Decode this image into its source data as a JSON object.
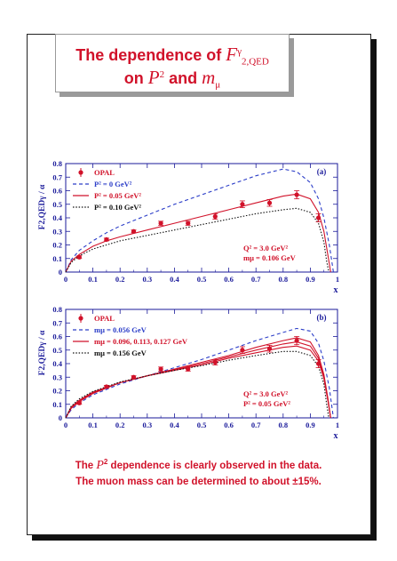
{
  "title": {
    "prefix": "The dependence of ",
    "symbol_F": "F",
    "sub": "2,QED",
    "sup": "γ",
    "line2_prefix": "on ",
    "P": "P",
    "P_sup": "2",
    "and": " and ",
    "m": "m",
    "m_sub": "μ"
  },
  "footer": {
    "line1_prefix": "The ",
    "line1_P": "P",
    "line1_sup": "2",
    "line1_suffix": " dependence is clearly observed in the data.",
    "line2_prefix": "The muon mass can be determined to about ",
    "line2_value": "±15%."
  },
  "colors": {
    "axis": "#1a1a9a",
    "red": "#d1122a",
    "blue": "#2c3ec8",
    "black": "#111111"
  },
  "chart_data": [
    {
      "type": "line",
      "panel_label": "(a)",
      "xlim": [
        0,
        1
      ],
      "ylim": [
        0,
        0.8
      ],
      "xticks": [
        "0",
        "0.1",
        "0.2",
        "0.3",
        "0.4",
        "0.5",
        "0.6",
        "0.7",
        "0.8",
        "0.9",
        "1"
      ],
      "yticks": [
        "0",
        "0.1",
        "0.2",
        "0.3",
        "0.4",
        "0.5",
        "0.6",
        "0.7",
        "0.8"
      ],
      "xlabel": "x",
      "ylabel": "F2,QEDγ / α",
      "legend": [
        {
          "label": "OPAL",
          "style": "points",
          "color": "#d1122a"
        },
        {
          "label": "P² =   0 GeV²",
          "style": "dashed",
          "color": "#2c3ec8"
        },
        {
          "label": "P² = 0.05 GeV²",
          "style": "solid",
          "color": "#d1122a"
        },
        {
          "label": "P² = 0.10 GeV²",
          "style": "dotted",
          "color": "#111111"
        }
      ],
      "annotation": [
        "Q² = 3.0 GeV²",
        "mμ = 0.106 GeV"
      ],
      "points": {
        "x": [
          0.05,
          0.15,
          0.25,
          0.35,
          0.45,
          0.55,
          0.65,
          0.75,
          0.85,
          0.93
        ],
        "y": [
          0.11,
          0.24,
          0.3,
          0.36,
          0.36,
          0.41,
          0.5,
          0.51,
          0.57,
          0.4
        ],
        "err": [
          0.01,
          0.01,
          0.01,
          0.015,
          0.015,
          0.02,
          0.025,
          0.025,
          0.03,
          0.03
        ]
      },
      "series": [
        {
          "style": "dashed",
          "color": "#2c3ec8",
          "x": [
            0,
            0.02,
            0.05,
            0.1,
            0.15,
            0.2,
            0.3,
            0.4,
            0.5,
            0.6,
            0.7,
            0.8,
            0.85,
            0.9,
            0.93,
            0.95,
            0.97,
            0.985
          ],
          "y": [
            0,
            0.09,
            0.16,
            0.23,
            0.29,
            0.34,
            0.42,
            0.5,
            0.57,
            0.64,
            0.71,
            0.76,
            0.74,
            0.66,
            0.54,
            0.4,
            0.2,
            0.0
          ]
        },
        {
          "style": "solid",
          "color": "#d1122a",
          "x": [
            0,
            0.02,
            0.05,
            0.1,
            0.15,
            0.2,
            0.3,
            0.4,
            0.5,
            0.6,
            0.7,
            0.8,
            0.85,
            0.9,
            0.93,
            0.95,
            0.965,
            0.975
          ],
          "y": [
            0,
            0.08,
            0.13,
            0.19,
            0.23,
            0.26,
            0.31,
            0.36,
            0.41,
            0.46,
            0.51,
            0.56,
            0.575,
            0.54,
            0.44,
            0.3,
            0.12,
            0.0
          ]
        },
        {
          "style": "dotted",
          "color": "#111111",
          "x": [
            0,
            0.02,
            0.05,
            0.1,
            0.15,
            0.2,
            0.3,
            0.4,
            0.5,
            0.6,
            0.7,
            0.8,
            0.85,
            0.9,
            0.93,
            0.95,
            0.96,
            0.968
          ],
          "y": [
            0,
            0.07,
            0.12,
            0.17,
            0.2,
            0.23,
            0.27,
            0.31,
            0.35,
            0.39,
            0.43,
            0.46,
            0.47,
            0.44,
            0.36,
            0.22,
            0.08,
            0.0
          ]
        }
      ]
    },
    {
      "type": "line",
      "panel_label": "(b)",
      "xlim": [
        0,
        1
      ],
      "ylim": [
        0,
        0.8
      ],
      "xticks": [
        "0",
        "0.1",
        "0.2",
        "0.3",
        "0.4",
        "0.5",
        "0.6",
        "0.7",
        "0.8",
        "0.9",
        "1"
      ],
      "yticks": [
        "0",
        "0.1",
        "0.2",
        "0.3",
        "0.4",
        "0.5",
        "0.6",
        "0.7",
        "0.8"
      ],
      "xlabel": "x",
      "ylabel": "F2,QEDγ / α",
      "legend": [
        {
          "label": "OPAL",
          "style": "points",
          "color": "#d1122a"
        },
        {
          "label": "mμ = 0.056 GeV",
          "style": "dashed",
          "color": "#2c3ec8"
        },
        {
          "label": "mμ = 0.096, 0.113, 0.127 GeV",
          "style": "solid",
          "color": "#d1122a"
        },
        {
          "label": "mμ = 0.156 GeV",
          "style": "dotted",
          "color": "#111111"
        }
      ],
      "annotation": [
        "Q² = 3.0 GeV²",
        "P² = 0.05 GeV²"
      ],
      "points": {
        "x": [
          0.05,
          0.15,
          0.25,
          0.35,
          0.45,
          0.55,
          0.65,
          0.75,
          0.85,
          0.93
        ],
        "y": [
          0.11,
          0.23,
          0.3,
          0.36,
          0.36,
          0.41,
          0.5,
          0.51,
          0.57,
          0.4
        ],
        "err": [
          0.01,
          0.01,
          0.01,
          0.015,
          0.015,
          0.02,
          0.025,
          0.025,
          0.03,
          0.03
        ]
      },
      "series": [
        {
          "style": "dashed",
          "color": "#2c3ec8",
          "x": [
            0,
            0.02,
            0.05,
            0.1,
            0.2,
            0.3,
            0.4,
            0.5,
            0.6,
            0.7,
            0.8,
            0.85,
            0.9,
            0.93,
            0.95,
            0.97,
            0.985
          ],
          "y": [
            0,
            0.06,
            0.11,
            0.17,
            0.25,
            0.31,
            0.37,
            0.43,
            0.5,
            0.57,
            0.63,
            0.66,
            0.64,
            0.55,
            0.42,
            0.22,
            0.0
          ]
        },
        {
          "style": "solid",
          "color": "#d1122a",
          "x": [
            0,
            0.02,
            0.05,
            0.1,
            0.2,
            0.3,
            0.4,
            0.5,
            0.6,
            0.7,
            0.8,
            0.85,
            0.9,
            0.93,
            0.95,
            0.965,
            0.975
          ],
          "y": [
            0,
            0.07,
            0.12,
            0.18,
            0.26,
            0.31,
            0.36,
            0.41,
            0.46,
            0.52,
            0.57,
            0.59,
            0.56,
            0.46,
            0.32,
            0.14,
            0.0
          ]
        },
        {
          "style": "solid",
          "color": "#d1122a",
          "x": [
            0,
            0.02,
            0.05,
            0.1,
            0.2,
            0.3,
            0.4,
            0.5,
            0.6,
            0.7,
            0.8,
            0.85,
            0.9,
            0.93,
            0.95,
            0.965,
            0.975
          ],
          "y": [
            0,
            0.075,
            0.125,
            0.185,
            0.26,
            0.31,
            0.355,
            0.4,
            0.45,
            0.5,
            0.545,
            0.56,
            0.53,
            0.44,
            0.31,
            0.13,
            0.0
          ]
        },
        {
          "style": "solid",
          "color": "#d1122a",
          "x": [
            0,
            0.02,
            0.05,
            0.1,
            0.2,
            0.3,
            0.4,
            0.5,
            0.6,
            0.7,
            0.8,
            0.85,
            0.9,
            0.93,
            0.95,
            0.965,
            0.975
          ],
          "y": [
            0,
            0.08,
            0.13,
            0.19,
            0.26,
            0.31,
            0.35,
            0.39,
            0.44,
            0.48,
            0.52,
            0.53,
            0.5,
            0.42,
            0.29,
            0.12,
            0.0
          ]
        },
        {
          "style": "dotted",
          "color": "#111111",
          "x": [
            0,
            0.02,
            0.05,
            0.1,
            0.2,
            0.3,
            0.4,
            0.5,
            0.6,
            0.7,
            0.8,
            0.85,
            0.9,
            0.93,
            0.95,
            0.96,
            0.968
          ],
          "y": [
            0,
            0.085,
            0.14,
            0.195,
            0.265,
            0.31,
            0.35,
            0.385,
            0.425,
            0.46,
            0.49,
            0.49,
            0.46,
            0.38,
            0.25,
            0.1,
            0.0
          ]
        }
      ]
    }
  ]
}
